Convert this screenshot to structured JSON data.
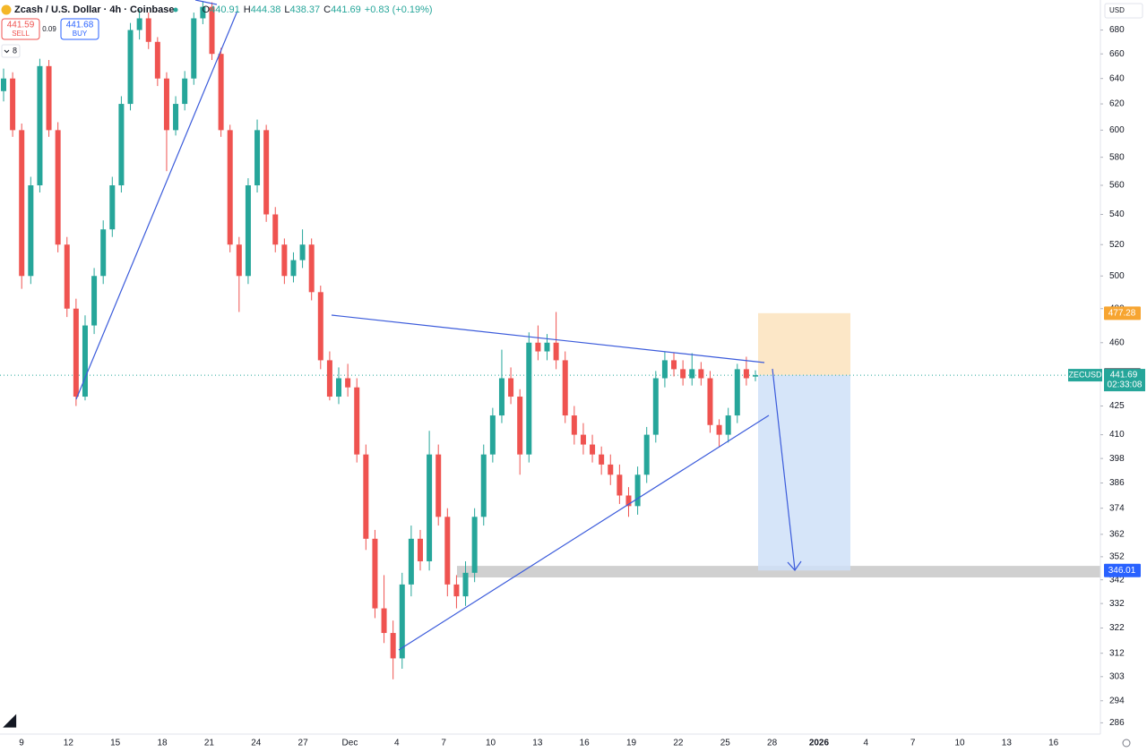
{
  "chart_data": {
    "type": "candlestick",
    "title": "Zcash / U.S. Dollar · 4h · Coinbase",
    "ohlc_header": [
      {
        "label": "O",
        "value": 440.91
      },
      {
        "label": "H",
        "value": 444.38
      },
      {
        "label": "L",
        "value": 438.37
      },
      {
        "label": "C",
        "value": 441.69
      }
    ],
    "change": "+0.83 (+0.19%)",
    "sell": {
      "price": 441.59,
      "label": "SELL"
    },
    "spread": 0.09,
    "buy": {
      "price": 441.68,
      "label": "BUY"
    },
    "indicator_count": 8,
    "currency": "USD",
    "symbol": "ZECUSD",
    "countdown": "02:33:08",
    "last_price": 441.69,
    "position": {
      "stop": 477.28,
      "entry": 441.78,
      "target": 346.01
    },
    "support_zone": [
      343,
      348
    ],
    "up_color": "#26a69a",
    "down_color": "#ef5350",
    "log_scale": true,
    "ylim": [
      282,
      706
    ],
    "yticks": [
      680,
      660,
      640,
      620,
      600,
      580,
      560,
      540,
      520,
      500,
      480,
      460,
      425,
      410,
      398,
      386,
      374,
      362,
      352,
      342,
      332,
      322,
      312,
      303,
      294,
      286
    ],
    "xticks": [
      "9",
      "12",
      "15",
      "18",
      "21",
      "24",
      "27",
      "Dec",
      "4",
      "7",
      "10",
      "13",
      "16",
      "19",
      "22",
      "25",
      "28",
      "2026",
      "4",
      "7",
      "10",
      "13",
      "16"
    ],
    "candles": [
      [
        630,
        648,
        622,
        640
      ],
      [
        640,
        645,
        595,
        600
      ],
      [
        600,
        605,
        492,
        500
      ],
      [
        500,
        566,
        495,
        560
      ],
      [
        560,
        656,
        555,
        650
      ],
      [
        650,
        655,
        595,
        600
      ],
      [
        600,
        606,
        515,
        520
      ],
      [
        520,
        525,
        475,
        480
      ],
      [
        480,
        486,
        425,
        430
      ],
      [
        430,
        476,
        428,
        470
      ],
      [
        470,
        505,
        465,
        500
      ],
      [
        500,
        536,
        495,
        530
      ],
      [
        530,
        566,
        525,
        560
      ],
      [
        560,
        626,
        555,
        620
      ],
      [
        620,
        686,
        615,
        680
      ],
      [
        680,
        698,
        672,
        690
      ],
      [
        690,
        695,
        664,
        670
      ],
      [
        670,
        674,
        634,
        640
      ],
      [
        640,
        645,
        570,
        600
      ],
      [
        600,
        626,
        596,
        620
      ],
      [
        620,
        646,
        615,
        640
      ],
      [
        640,
        695,
        635,
        690
      ],
      [
        690,
        705,
        685,
        700
      ],
      [
        700,
        704,
        655,
        660
      ],
      [
        660,
        665,
        595,
        600
      ],
      [
        600,
        604,
        515,
        520
      ],
      [
        520,
        525,
        478,
        500
      ],
      [
        500,
        565,
        495,
        560
      ],
      [
        560,
        608,
        555,
        600
      ],
      [
        600,
        604,
        535,
        540
      ],
      [
        540,
        545,
        515,
        520
      ],
      [
        520,
        524,
        495,
        500
      ],
      [
        500,
        515,
        496,
        510
      ],
      [
        510,
        530,
        505,
        520
      ],
      [
        520,
        524,
        485,
        490
      ],
      [
        490,
        494,
        445,
        450
      ],
      [
        450,
        455,
        428,
        430
      ],
      [
        430,
        446,
        426,
        440
      ],
      [
        440,
        448,
        430,
        435
      ],
      [
        435,
        440,
        396,
        400
      ],
      [
        400,
        405,
        355,
        360
      ],
      [
        360,
        364,
        326,
        330
      ],
      [
        330,
        344,
        316,
        320
      ],
      [
        320,
        325,
        302,
        310
      ],
      [
        310,
        345,
        306,
        340
      ],
      [
        340,
        366,
        335,
        360
      ],
      [
        360,
        364,
        346,
        350
      ],
      [
        350,
        412,
        346,
        400
      ],
      [
        400,
        405,
        366,
        370
      ],
      [
        370,
        374,
        335,
        340
      ],
      [
        340,
        344,
        330,
        335
      ],
      [
        335,
        350,
        331,
        345
      ],
      [
        345,
        374,
        341,
        370
      ],
      [
        370,
        405,
        366,
        400
      ],
      [
        400,
        424,
        396,
        420
      ],
      [
        420,
        456,
        416,
        440
      ],
      [
        440,
        446,
        426,
        430
      ],
      [
        430,
        434,
        390,
        400
      ],
      [
        400,
        466,
        396,
        460
      ],
      [
        460,
        470,
        450,
        455
      ],
      [
        455,
        465,
        450,
        460
      ],
      [
        460,
        478,
        445,
        450
      ],
      [
        450,
        455,
        416,
        420
      ],
      [
        420,
        425,
        405,
        410
      ],
      [
        410,
        416,
        400,
        405
      ],
      [
        405,
        410,
        396,
        400
      ],
      [
        400,
        404,
        390,
        395
      ],
      [
        395,
        400,
        385,
        390
      ],
      [
        390,
        395,
        376,
        380
      ],
      [
        380,
        384,
        370,
        375
      ],
      [
        375,
        394,
        371,
        390
      ],
      [
        390,
        414,
        386,
        410
      ],
      [
        410,
        444,
        406,
        440
      ],
      [
        440,
        455,
        435,
        450
      ],
      [
        450,
        454,
        441,
        445
      ],
      [
        445,
        450,
        436,
        440
      ],
      [
        440,
        454,
        436,
        445
      ],
      [
        445,
        449,
        436,
        440
      ],
      [
        440,
        444,
        411,
        415
      ],
      [
        415,
        418,
        404,
        410
      ],
      [
        410,
        424,
        406,
        420
      ],
      [
        420,
        448,
        416,
        445
      ],
      [
        445,
        452,
        436,
        440
      ],
      [
        440.91,
        444.38,
        438.37,
        441.69
      ]
    ]
  }
}
